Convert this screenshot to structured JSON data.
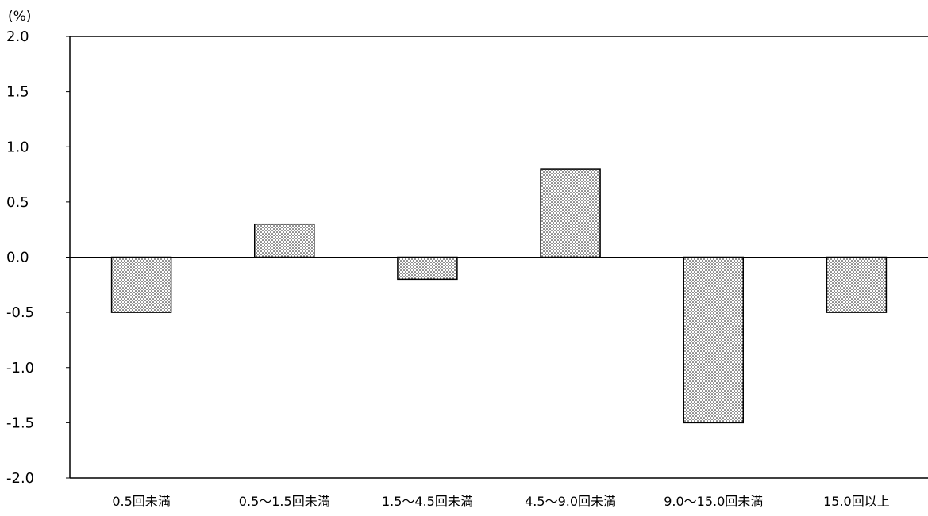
{
  "chart_data": {
    "type": "bar",
    "title": "",
    "ylabel": "",
    "xlabel": "",
    "unit_label": "(%)",
    "categories": [
      "0.5回未満",
      "0.5～1.5回未満",
      "1.5～4.5回未満",
      "4.5～9.0回未満",
      "9.0～15.0回未満",
      "15.0回以上"
    ],
    "values": [
      -0.5,
      0.3,
      -0.2,
      0.8,
      -1.5,
      -0.5
    ],
    "ylim": [
      -2.0,
      2.0
    ],
    "yticks": [
      "2.0",
      "1.5",
      "1.0",
      "0.5",
      "0.0",
      "-0.5",
      "-1.0",
      "-1.5",
      "-2.0"
    ],
    "ytick_values": [
      2.0,
      1.5,
      1.0,
      0.5,
      0.0,
      -0.5,
      -1.0,
      -1.5,
      -2.0
    ],
    "grid": false,
    "legend": "none",
    "bar_fill": "dotted-pattern",
    "colors": {
      "bar_fill": "#ffffff",
      "bar_dots": "#000000",
      "axis": "#000000"
    }
  }
}
